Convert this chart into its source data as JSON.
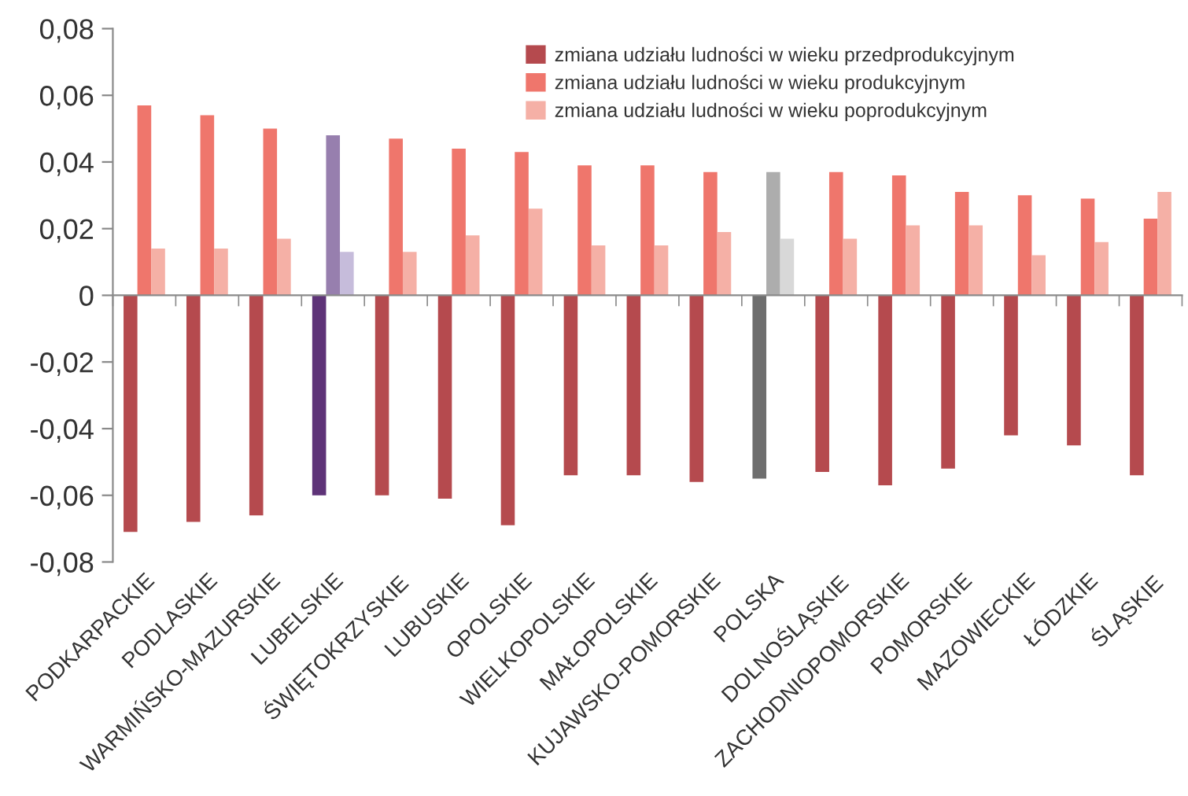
{
  "chart_data": {
    "type": "bar",
    "categories": [
      "PODKARPACKIE",
      "PODLASKIE",
      "WARMIŃSKO-MAZURSKIE",
      "LUBELSKIE",
      "ŚWIĘTOKRZYSKIE",
      "LUBUSKIE",
      "OPOLSKIE",
      "WIELKOPOLSKIE",
      "MAŁOPOLSKIE",
      "KUJAWSKO-POMORSKIE",
      "POLSKA",
      "DOLNOŚLĄSKIE",
      "ZACHODNIOPOMORSKIE",
      "POMORSKIE",
      "MAZOWIECKIE",
      "ŁÓDZKIE",
      "ŚLĄSKIE"
    ],
    "series": [
      {
        "name": "zmiana udziału ludności w wieku przedprodukcyjnym",
        "color": "#b54a4e",
        "colors": [
          "#b54a4e",
          "#b54a4e",
          "#b54a4e",
          "#5e3378",
          "#b54a4e",
          "#b54a4e",
          "#b54a4e",
          "#b54a4e",
          "#b54a4e",
          "#b54a4e",
          "#6e6e6e",
          "#b54a4e",
          "#b54a4e",
          "#b54a4e",
          "#b54a4e",
          "#b54a4e",
          "#b54a4e"
        ],
        "values": [
          -0.071,
          -0.068,
          -0.066,
          -0.06,
          -0.06,
          -0.061,
          -0.069,
          -0.054,
          -0.054,
          -0.056,
          -0.055,
          -0.053,
          -0.057,
          -0.052,
          -0.042,
          -0.045,
          -0.054
        ]
      },
      {
        "name": "zmiana udziału ludności w wieku produkcyjnym",
        "color": "#ef766c",
        "colors": [
          "#ef766c",
          "#ef766c",
          "#ef766c",
          "#977fae",
          "#ef766c",
          "#ef766c",
          "#ef766c",
          "#ef766c",
          "#ef766c",
          "#ef766c",
          "#adadad",
          "#ef766c",
          "#ef766c",
          "#ef766c",
          "#ef766c",
          "#ef766c",
          "#ef766c"
        ],
        "values": [
          0.057,
          0.054,
          0.05,
          0.048,
          0.047,
          0.044,
          0.043,
          0.039,
          0.039,
          0.037,
          0.037,
          0.037,
          0.036,
          0.031,
          0.03,
          0.029,
          0.023
        ]
      },
      {
        "name": "zmiana udziału ludności w wieku poprodukcyjnym",
        "color": "#f5b0a6",
        "colors": [
          "#f5b0a6",
          "#f5b0a6",
          "#f5b0a6",
          "#c6bcdb",
          "#f5b0a6",
          "#f5b0a6",
          "#f5b0a6",
          "#f5b0a6",
          "#f5b0a6",
          "#f5b0a6",
          "#d8d8d8",
          "#f5b0a6",
          "#f5b0a6",
          "#f5b0a6",
          "#f5b0a6",
          "#f5b0a6",
          "#f5b0a6"
        ],
        "values": [
          0.014,
          0.014,
          0.017,
          0.013,
          0.013,
          0.018,
          0.026,
          0.015,
          0.015,
          0.019,
          0.017,
          0.017,
          0.021,
          0.021,
          0.012,
          0.016,
          0.031
        ]
      }
    ],
    "ylim": [
      -0.08,
      0.08
    ],
    "yticks": [
      {
        "value": -0.08,
        "label": "-0,08"
      },
      {
        "value": -0.06,
        "label": "-0,06"
      },
      {
        "value": -0.04,
        "label": "-0,04"
      },
      {
        "value": -0.02,
        "label": "-0,02"
      },
      {
        "value": 0,
        "label": "0"
      },
      {
        "value": 0.02,
        "label": "0,02"
      },
      {
        "value": 0.04,
        "label": "0,04"
      },
      {
        "value": 0.06,
        "label": "0,06"
      },
      {
        "value": 0.08,
        "label": "0,08"
      }
    ],
    "legend": "top right"
  }
}
